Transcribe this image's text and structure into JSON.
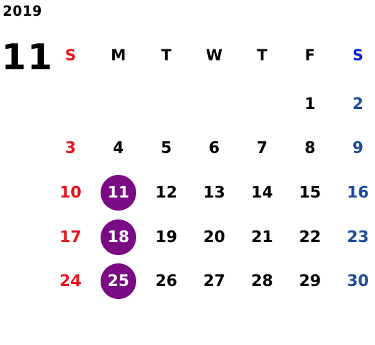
{
  "calendar": {
    "year": "2019",
    "month": "11",
    "weekdays": [
      "S",
      "M",
      "T",
      "W",
      "T",
      "F",
      "S"
    ],
    "weeks": [
      [
        "",
        "",
        "",
        "",
        "",
        "1",
        "2"
      ],
      [
        "3",
        "4",
        "5",
        "6",
        "7",
        "8",
        "9"
      ],
      [
        "10",
        "11",
        "12",
        "13",
        "14",
        "15",
        "16"
      ],
      [
        "17",
        "18",
        "19",
        "20",
        "21",
        "22",
        "23"
      ],
      [
        "24",
        "25",
        "26",
        "27",
        "28",
        "29",
        "30"
      ]
    ],
    "highlighted_days": [
      "11",
      "18",
      "25"
    ],
    "colors": {
      "sunday": "#e8141d",
      "saturday_header": "#0a1edb",
      "saturday": "#1f4a9b",
      "highlight_circle": "#7b0a85",
      "weekday": "#000000"
    }
  }
}
